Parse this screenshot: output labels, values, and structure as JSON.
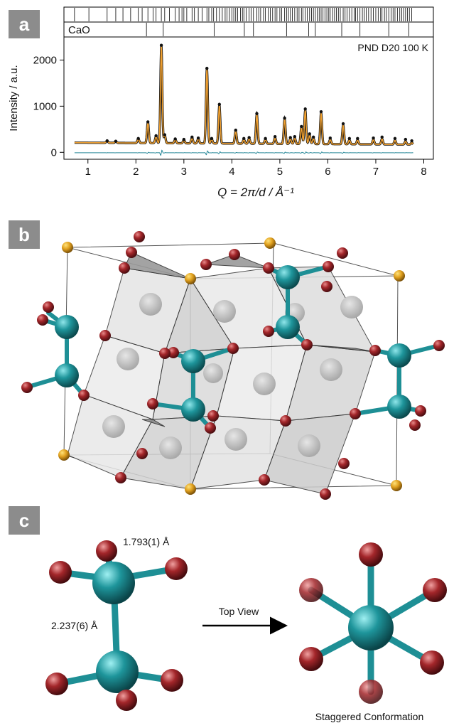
{
  "panels": {
    "a": {
      "label": "a"
    },
    "b": {
      "label": "b"
    },
    "c": {
      "label": "c"
    }
  },
  "chart_data": {
    "type": "line",
    "phase_label": "CaO",
    "annotation": "PND D20 100 K",
    "xlabel": "Q = 2π/d / Å⁻¹",
    "ylabel": "Intensity / a.u.",
    "xlim": [
      0.5,
      8.2
    ],
    "ylim": [
      -150,
      2500
    ],
    "xticks": [
      1,
      2,
      3,
      4,
      5,
      6,
      7,
      8
    ],
    "yticks": [
      0,
      1000,
      2000
    ],
    "background_level": 210,
    "peaks": [
      {
        "q": 1.4,
        "intensity": 250
      },
      {
        "q": 1.58,
        "intensity": 240
      },
      {
        "q": 2.05,
        "intensity": 300
      },
      {
        "q": 2.25,
        "intensity": 660
      },
      {
        "q": 2.42,
        "intensity": 360
      },
      {
        "q": 2.53,
        "intensity": 2320
      },
      {
        "q": 2.6,
        "intensity": 380
      },
      {
        "q": 2.82,
        "intensity": 290
      },
      {
        "q": 3.0,
        "intensity": 280
      },
      {
        "q": 3.17,
        "intensity": 330
      },
      {
        "q": 3.3,
        "intensity": 310
      },
      {
        "q": 3.48,
        "intensity": 1820
      },
      {
        "q": 3.58,
        "intensity": 300
      },
      {
        "q": 3.74,
        "intensity": 1040
      },
      {
        "q": 4.08,
        "intensity": 480
      },
      {
        "q": 4.25,
        "intensity": 300
      },
      {
        "q": 4.36,
        "intensity": 320
      },
      {
        "q": 4.52,
        "intensity": 840
      },
      {
        "q": 4.7,
        "intensity": 300
      },
      {
        "q": 4.9,
        "intensity": 340
      },
      {
        "q": 5.1,
        "intensity": 740
      },
      {
        "q": 5.22,
        "intensity": 320
      },
      {
        "q": 5.31,
        "intensity": 340
      },
      {
        "q": 5.45,
        "intensity": 560
      },
      {
        "q": 5.53,
        "intensity": 940
      },
      {
        "q": 5.62,
        "intensity": 400
      },
      {
        "q": 5.7,
        "intensity": 330
      },
      {
        "q": 5.86,
        "intensity": 880
      },
      {
        "q": 6.05,
        "intensity": 310
      },
      {
        "q": 6.32,
        "intensity": 620
      },
      {
        "q": 6.45,
        "intensity": 300
      },
      {
        "q": 6.62,
        "intensity": 300
      },
      {
        "q": 6.95,
        "intensity": 310
      },
      {
        "q": 7.13,
        "intensity": 330
      },
      {
        "q": 7.4,
        "intensity": 300
      },
      {
        "q": 7.62,
        "intensity": 280
      },
      {
        "q": 7.75,
        "intensity": 250
      }
    ],
    "reflections_main": [
      0.72,
      1.02,
      1.4,
      1.58,
      1.73,
      1.89,
      2.05,
      2.13,
      2.25,
      2.36,
      2.42,
      2.53,
      2.6,
      2.7,
      2.82,
      2.9,
      2.96,
      3.0,
      3.06,
      3.17,
      3.22,
      3.3,
      3.38,
      3.48,
      3.52,
      3.58,
      3.62,
      3.68,
      3.74,
      3.8,
      3.86,
      3.9,
      3.95,
      4.0,
      4.04,
      4.08,
      4.12,
      4.18,
      4.22,
      4.25,
      4.3,
      4.36,
      4.4,
      4.45,
      4.52,
      4.56,
      4.6,
      4.66,
      4.7,
      4.76,
      4.8,
      4.85,
      4.9,
      4.94,
      5.0,
      5.04,
      5.1,
      5.14,
      5.18,
      5.22,
      5.26,
      5.31,
      5.36,
      5.4,
      5.45,
      5.48,
      5.53,
      5.57,
      5.62,
      5.66,
      5.7,
      5.74,
      5.78,
      5.82,
      5.86,
      5.9,
      5.94,
      5.98,
      6.02,
      6.05,
      6.1,
      6.14,
      6.18,
      6.22,
      6.26,
      6.32,
      6.36,
      6.4,
      6.45,
      6.5,
      6.55,
      6.58,
      6.62,
      6.67,
      6.72,
      6.76,
      6.8,
      6.85,
      6.9,
      6.95,
      7.0,
      7.05,
      7.1,
      7.13,
      7.18,
      7.22,
      7.27,
      7.32,
      7.36,
      7.4,
      7.45,
      7.5,
      7.54,
      7.58,
      7.62,
      7.66,
      7.7,
      7.75
    ],
    "reflections_cao": [
      2.22,
      2.57,
      3.63,
      4.26,
      4.45,
      5.14,
      5.6,
      5.74,
      6.29,
      6.67,
      7.27,
      7.69
    ]
  },
  "structure": {
    "legend": []
  },
  "dimer": {
    "bond_short": "1.793(1) Å",
    "bond_long": "2.237(6) Å",
    "arrow_label": "Top View",
    "conformation": "Staggered Conformation"
  },
  "colors": {
    "calc_line": "#f0a030",
    "observed": "#111111",
    "difference": "#2a8a9a",
    "metal": "#1e8f95",
    "oxygen": "#a3262a",
    "corner": "#e0a01e",
    "polyhedra": "#d8d8d8"
  }
}
